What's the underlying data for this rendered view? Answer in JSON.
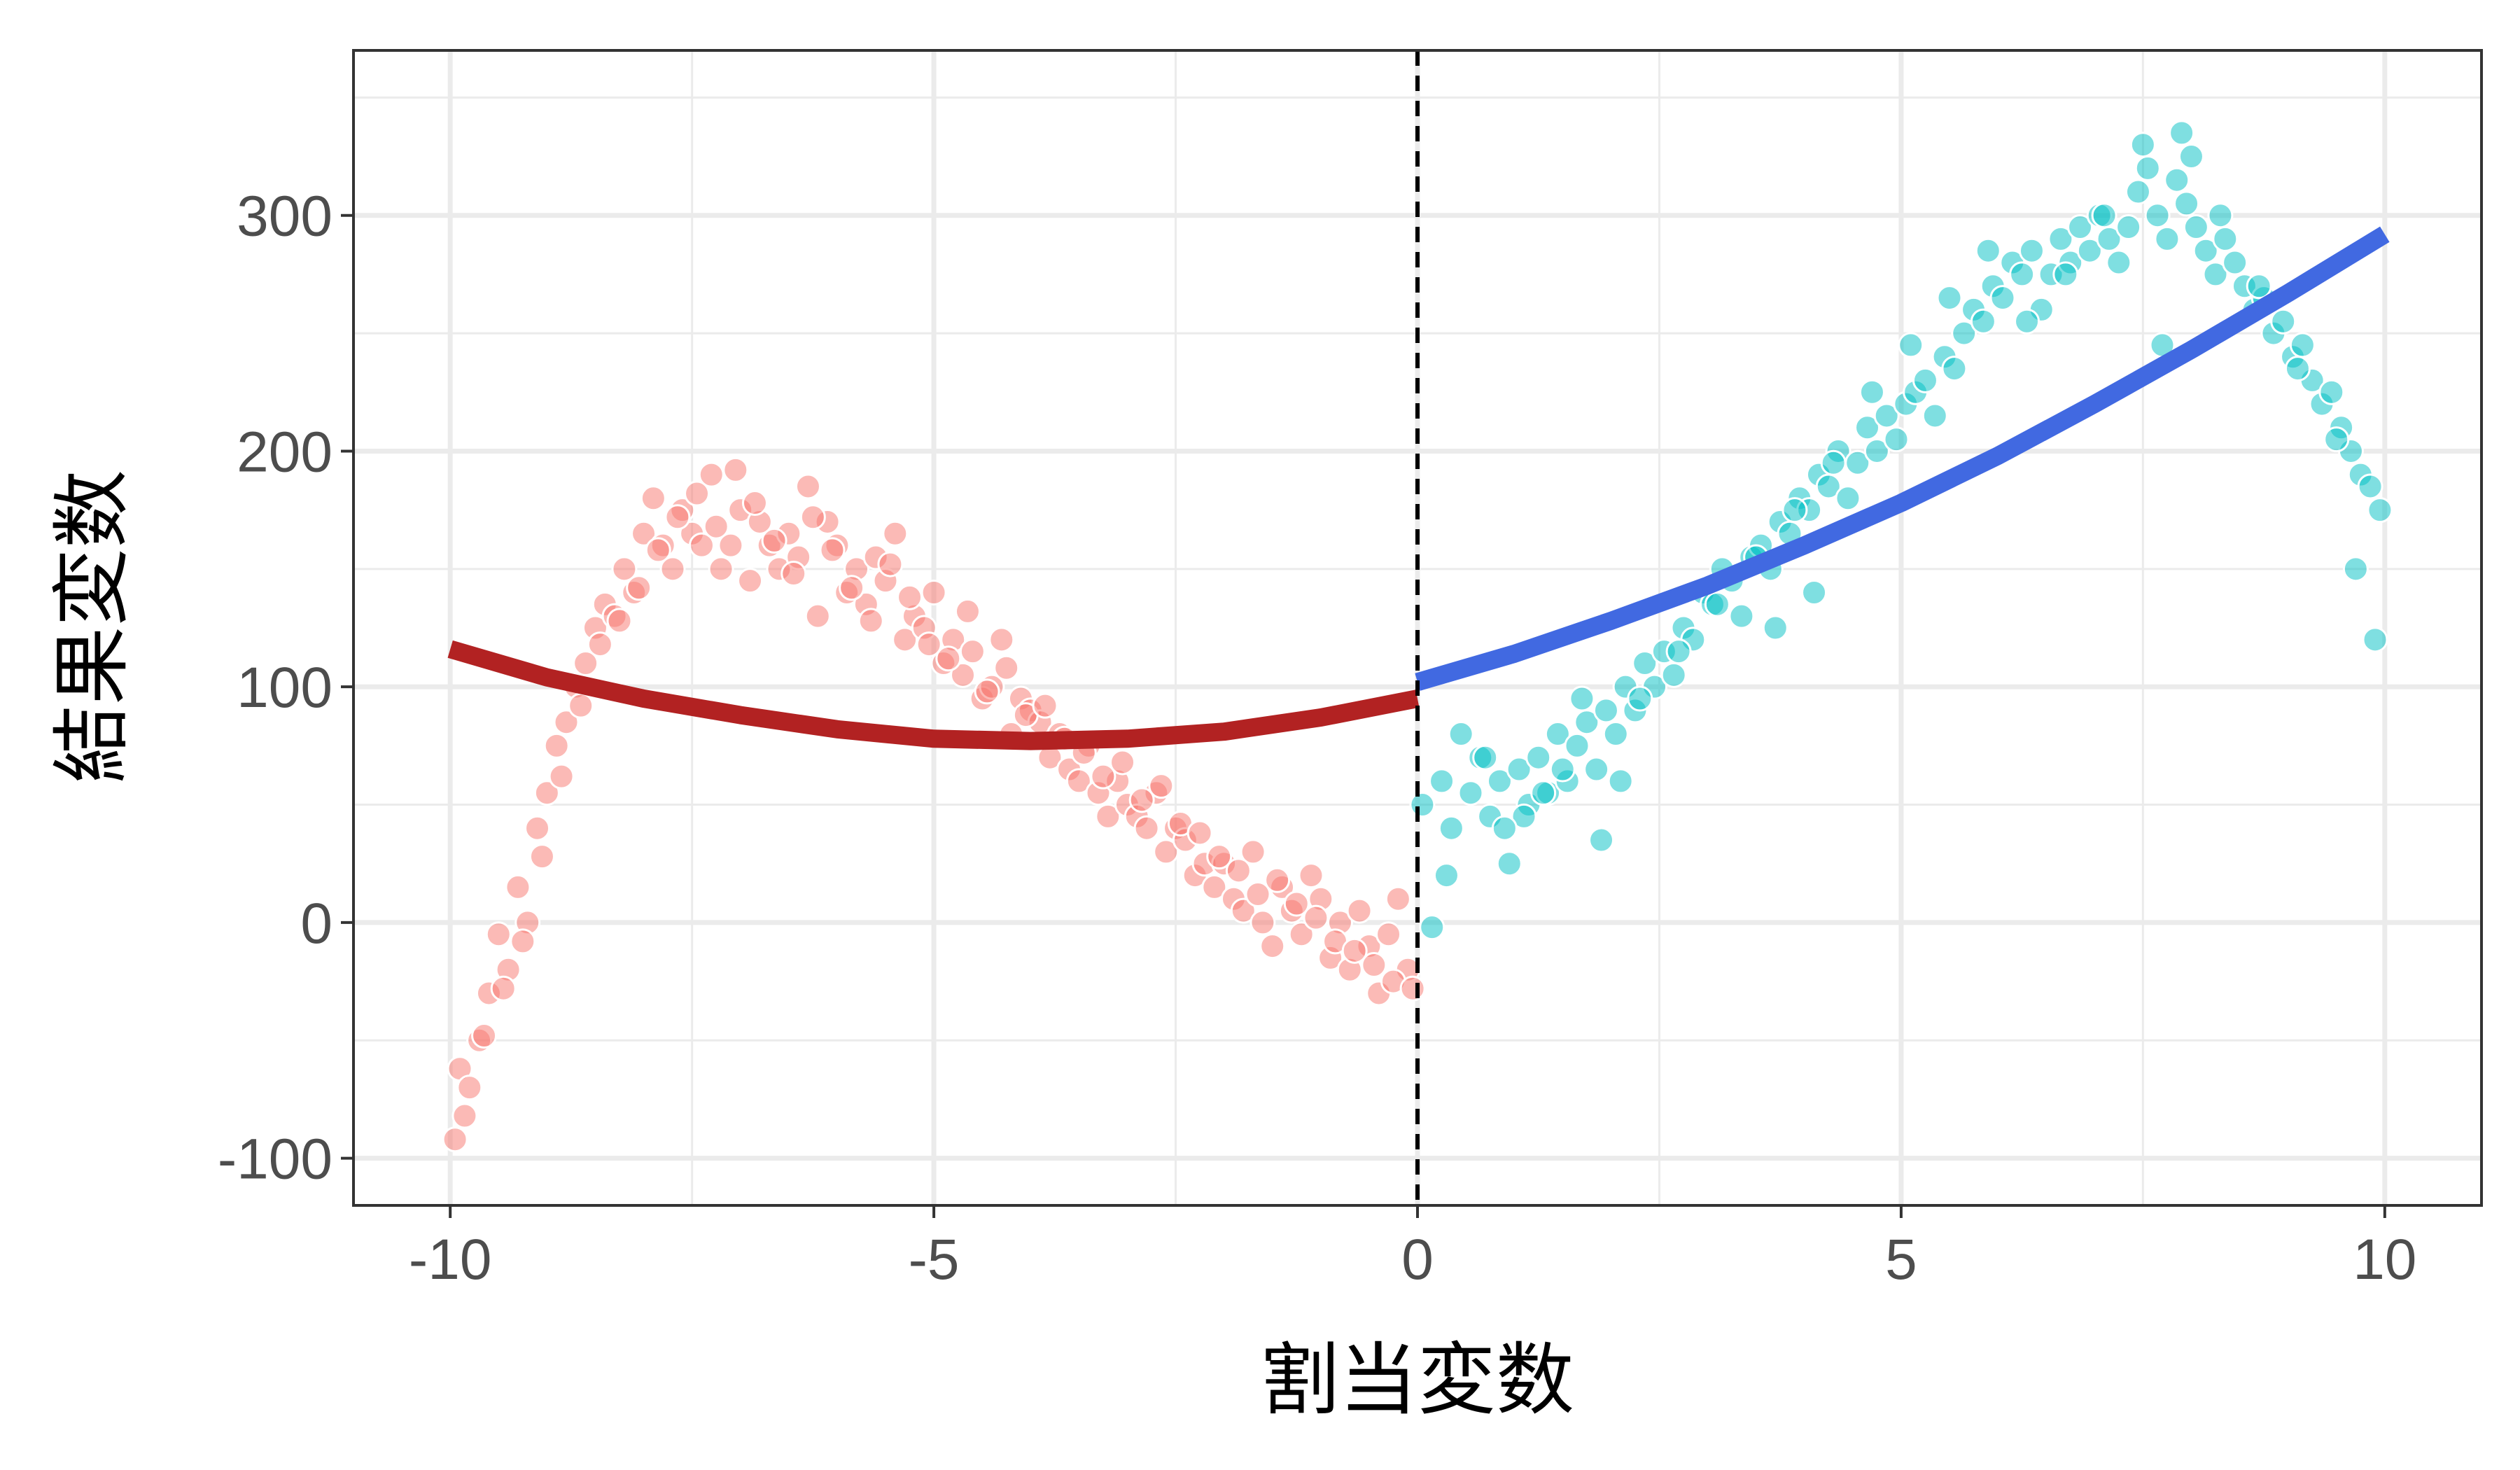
{
  "chart_data": {
    "type": "scatter",
    "title": "",
    "xlabel": "割当変数",
    "ylabel": "結果変数",
    "xlim": [
      -11,
      11
    ],
    "ylim": [
      -120,
      370
    ],
    "x_ticks": [
      -10,
      -5,
      0,
      5,
      10
    ],
    "x_tick_labels": [
      "-10",
      "-5",
      "0",
      "5",
      "10"
    ],
    "y_ticks": [
      -100,
      0,
      100,
      200,
      300
    ],
    "y_tick_labels": [
      "-100",
      "0",
      "100",
      "200",
      "300"
    ],
    "grid": true,
    "legend": "none",
    "cutoff": 0,
    "series": [
      {
        "kind": "points",
        "color": "#F8766D",
        "x": [
          -9.95,
          -9.9,
          -9.8,
          -9.7,
          -9.6,
          -9.5,
          -9.4,
          -9.3,
          -9.2,
          -9.1,
          -9.0,
          -8.9,
          -8.8,
          -8.7,
          -8.6,
          -8.5,
          -8.4,
          -8.3,
          -8.2,
          -8.1,
          -8.0,
          -7.9,
          -7.8,
          -7.7,
          -7.6,
          -7.5,
          -7.4,
          -7.3,
          -7.2,
          -7.1,
          -7.0,
          -6.9,
          -6.8,
          -6.7,
          -6.6,
          -6.5,
          -6.4,
          -6.3,
          -6.2,
          -6.1,
          -6.0,
          -5.9,
          -5.8,
          -5.7,
          -5.6,
          -5.5,
          -5.4,
          -5.3,
          -5.2,
          -5.1,
          -5.0,
          -4.9,
          -4.8,
          -4.7,
          -4.6,
          -4.5,
          -4.4,
          -4.3,
          -4.2,
          -4.1,
          -4.0,
          -3.9,
          -3.8,
          -3.7,
          -3.6,
          -3.5,
          -3.4,
          -3.3,
          -3.2,
          -3.1,
          -3.0,
          -2.9,
          -2.8,
          -2.7,
          -2.6,
          -2.5,
          -2.4,
          -2.3,
          -2.2,
          -2.1,
          -2.0,
          -1.9,
          -1.8,
          -1.7,
          -1.6,
          -1.5,
          -1.4,
          -1.3,
          -1.2,
          -1.1,
          -1.0,
          -0.9,
          -0.8,
          -0.7,
          -0.6,
          -0.5,
          -0.4,
          -0.3,
          -0.2,
          -0.1,
          -9.85,
          -9.65,
          -9.45,
          -9.25,
          -9.05,
          -8.85,
          -8.65,
          -8.45,
          -8.25,
          -8.05,
          -7.85,
          -7.65,
          -7.45,
          -7.25,
          -7.05,
          -6.85,
          -6.65,
          -6.45,
          -6.25,
          -6.05,
          -5.85,
          -5.65,
          -5.45,
          -5.25,
          -5.05,
          -4.85,
          -4.65,
          -4.45,
          -4.25,
          -4.05,
          -3.85,
          -3.65,
          -3.45,
          -3.25,
          -3.05,
          -2.85,
          -2.65,
          -2.45,
          -2.25,
          -2.05,
          -1.85,
          -1.65,
          -1.45,
          -1.25,
          -1.05,
          -0.85,
          -0.65,
          -0.45,
          -0.25,
          -0.05
        ],
        "y": [
          -92,
          -62,
          -70,
          -50,
          -30,
          -5,
          -20,
          15,
          0,
          40,
          55,
          75,
          85,
          100,
          110,
          125,
          135,
          130,
          150,
          140,
          165,
          180,
          160,
          150,
          175,
          165,
          160,
          190,
          150,
          160,
          175,
          145,
          170,
          160,
          150,
          165,
          155,
          185,
          130,
          170,
          160,
          140,
          150,
          135,
          155,
          145,
          165,
          120,
          130,
          125,
          140,
          110,
          120,
          105,
          115,
          95,
          100,
          120,
          80,
          95,
          90,
          85,
          70,
          80,
          65,
          60,
          75,
          55,
          45,
          60,
          50,
          45,
          40,
          55,
          30,
          40,
          35,
          20,
          25,
          15,
          25,
          10,
          5,
          30,
          0,
          -10,
          15,
          5,
          -5,
          20,
          10,
          -15,
          0,
          -20,
          5,
          -10,
          -30,
          -5,
          10,
          -20,
          -82,
          -48,
          -28,
          -8,
          28,
          62,
          92,
          118,
          128,
          142,
          158,
          172,
          182,
          168,
          192,
          178,
          162,
          148,
          172,
          158,
          142,
          128,
          152,
          138,
          118,
          112,
          132,
          98,
          108,
          88,
          92,
          78,
          72,
          62,
          68,
          52,
          58,
          42,
          38,
          28,
          22,
          12,
          18,
          8,
          2,
          -8,
          -12,
          -18,
          -25,
          -28
        ]
      },
      {
        "kind": "points",
        "color": "#00BFC4",
        "x": [
          0.05,
          0.15,
          0.25,
          0.35,
          0.45,
          0.55,
          0.65,
          0.75,
          0.85,
          0.95,
          1.05,
          1.15,
          1.25,
          1.35,
          1.45,
          1.55,
          1.65,
          1.75,
          1.85,
          1.95,
          2.05,
          2.15,
          2.25,
          2.35,
          2.45,
          2.55,
          2.65,
          2.75,
          2.85,
          2.95,
          3.05,
          3.15,
          3.25,
          3.35,
          3.45,
          3.55,
          3.65,
          3.75,
          3.85,
          3.95,
          4.05,
          4.15,
          4.25,
          4.35,
          4.45,
          4.55,
          4.65,
          4.75,
          4.85,
          4.95,
          5.05,
          5.15,
          5.25,
          5.35,
          5.45,
          5.55,
          5.65,
          5.75,
          5.85,
          5.95,
          6.05,
          6.15,
          6.25,
          6.35,
          6.45,
          6.55,
          6.65,
          6.75,
          6.85,
          6.95,
          7.05,
          7.15,
          7.25,
          7.35,
          7.45,
          7.55,
          7.65,
          7.75,
          7.85,
          7.95,
          8.05,
          8.15,
          8.25,
          8.35,
          8.45,
          8.55,
          8.65,
          8.75,
          8.85,
          8.95,
          9.05,
          9.15,
          9.25,
          9.35,
          9.45,
          9.55,
          9.65,
          9.75,
          9.85,
          9.95,
          0.3,
          0.7,
          1.1,
          1.5,
          1.9,
          2.3,
          2.7,
          3.1,
          3.5,
          3.9,
          4.3,
          4.7,
          5.1,
          5.5,
          5.9,
          6.3,
          6.7,
          7.1,
          7.5,
          7.9,
          8.3,
          8.7,
          9.1,
          9.5,
          9.9,
          0.9,
          1.3,
          1.7,
          2.1,
          3.7,
          4.1,
          7.7,
          8.0,
          9.7
        ],
        "y": [
          50,
          -2,
          60,
          40,
          80,
          55,
          70,
          45,
          60,
          25,
          65,
          50,
          70,
          55,
          80,
          60,
          75,
          85,
          65,
          90,
          80,
          100,
          90,
          110,
          100,
          115,
          105,
          125,
          120,
          140,
          135,
          150,
          145,
          130,
          155,
          160,
          150,
          170,
          165,
          180,
          175,
          190,
          185,
          200,
          180,
          195,
          210,
          200,
          215,
          205,
          220,
          225,
          230,
          215,
          240,
          235,
          250,
          260,
          255,
          270,
          265,
          280,
          275,
          285,
          260,
          275,
          290,
          280,
          295,
          285,
          300,
          290,
          280,
          295,
          310,
          320,
          300,
          290,
          315,
          305,
          295,
          285,
          275,
          290,
          280,
          270,
          260,
          265,
          250,
          255,
          240,
          245,
          230,
          220,
          225,
          210,
          200,
          190,
          185,
          175,
          20,
          70,
          45,
          65,
          35,
          95,
          115,
          135,
          155,
          175,
          195,
          225,
          245,
          265,
          285,
          255,
          275,
          300,
          330,
          335,
          300,
          270,
          235,
          205,
          120,
          40,
          55,
          95,
          60,
          125,
          140,
          245,
          325,
          150
        ]
      },
      {
        "kind": "line",
        "color": "#B22222",
        "x": [
          -10,
          -9,
          -8,
          -7,
          -6,
          -5,
          -4,
          -3,
          -2,
          -1,
          0
        ],
        "y": [
          116,
          104,
          95,
          88,
          82,
          78,
          77,
          78,
          81,
          87,
          95
        ]
      },
      {
        "kind": "line",
        "color": "#4169E1",
        "x": [
          0,
          1,
          2,
          3,
          4,
          5,
          6,
          7,
          8,
          9,
          10
        ],
        "y": [
          102,
          114,
          128,
          143,
          160,
          178,
          198,
          220,
          243,
          267,
          292
        ]
      }
    ]
  }
}
